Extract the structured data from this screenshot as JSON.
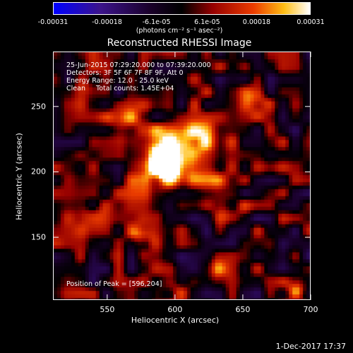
{
  "chart_data": {
    "type": "heatmap",
    "title": "Reconstructed RHESSI Image",
    "xlabel": "Heliocentric X (arcsec)",
    "ylabel": "Heliocentric Y (arcsec)",
    "xlim": [
      510,
      700
    ],
    "ylim": [
      102,
      292
    ],
    "x_ticks": [
      550,
      600,
      650,
      700
    ],
    "y_ticks": [
      150,
      200,
      250
    ],
    "colorbar": {
      "range": [
        -0.00031,
        0.00031
      ],
      "tick_labels": [
        "-0.00031",
        "-0.00018",
        "-6.1e-05",
        "6.1e-05",
        "0.00018",
        "0.00031"
      ],
      "tick_values": [
        -0.00031,
        -0.00018,
        -6.1e-05,
        6.1e-05,
        0.00018,
        0.00031
      ],
      "units_label": "(photons cm⁻² s⁻¹ asec⁻²)"
    },
    "info_lines": [
      "25-Jun-2015 07:29:20.000 to 07:39:20.000",
      "Detectors: 3F 5F 6F 7F 8F 9F, Att 0",
      "Energy Range: 12.0 - 25.0 keV",
      "Clean     Total counts: 1.45E+04"
    ],
    "peak_label": "Position of Peak = [596,204]",
    "peak": [
      596,
      204
    ],
    "peak_value": 0.00031,
    "sources": [
      {
        "x": 596,
        "y": 204,
        "amplitude": 1.0,
        "sigma": 9
      },
      {
        "x": 590,
        "y": 215,
        "amplitude": 0.7,
        "sigma": 14
      },
      {
        "x": 615,
        "y": 225,
        "amplitude": 0.55,
        "sigma": 10
      },
      {
        "x": 565,
        "y": 240,
        "amplitude": 0.5,
        "sigma": 10
      },
      {
        "x": 625,
        "y": 195,
        "amplitude": 0.45,
        "sigma": 9
      },
      {
        "x": 575,
        "y": 150,
        "amplitude": 0.65,
        "sigma": 7
      },
      {
        "x": 540,
        "y": 165,
        "amplitude": 0.45,
        "sigma": 6
      },
      {
        "x": 640,
        "y": 170,
        "amplitude": 0.4,
        "sigma": 8
      },
      {
        "x": 660,
        "y": 255,
        "amplitude": 0.5,
        "sigma": 7
      },
      {
        "x": 630,
        "y": 125,
        "amplitude": 0.45,
        "sigma": 7
      },
      {
        "x": 690,
        "y": 110,
        "amplitude": 0.5,
        "sigma": 5
      },
      {
        "x": 600,
        "y": 110,
        "amplitude": 0.35,
        "sigma": 8
      },
      {
        "x": 535,
        "y": 270,
        "amplitude": 0.35,
        "sigma": 6
      }
    ]
  },
  "footer": {
    "date_stamp": "1-Dec-2017 17:37"
  }
}
